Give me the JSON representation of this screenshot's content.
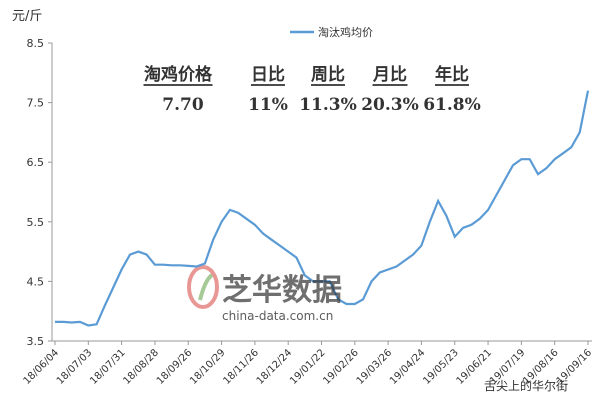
{
  "chart_data": {
    "type": "line",
    "y_unit_label": "元/斤",
    "categories": [
      "18/06/04",
      null,
      null,
      null,
      "18/07/03",
      null,
      null,
      null,
      "18/07/31",
      null,
      null,
      null,
      "18/08/28",
      null,
      null,
      null,
      "18/09/26",
      null,
      null,
      null,
      "18/10/29",
      null,
      null,
      null,
      "18/11/26",
      null,
      null,
      null,
      "18/12/24",
      null,
      null,
      null,
      "19/01/22",
      null,
      null,
      null,
      "19/02/26",
      null,
      null,
      null,
      "19/03/26",
      null,
      null,
      null,
      "19/04/24",
      null,
      null,
      null,
      "19/05/23",
      null,
      null,
      null,
      "19/06/21",
      null,
      null,
      null,
      "19/07/19",
      null,
      null,
      null,
      "19/08/16",
      null,
      null,
      null,
      "19/09/16"
    ],
    "series": [
      {
        "name": "淘汰鸡均价",
        "color": "#5b9bd5",
        "values": [
          3.82,
          3.82,
          3.81,
          3.82,
          3.76,
          3.78,
          4.1,
          4.4,
          4.7,
          4.95,
          5.0,
          4.95,
          4.78,
          4.78,
          4.77,
          4.77,
          4.76,
          4.75,
          4.8,
          5.2,
          5.5,
          5.7,
          5.65,
          5.55,
          5.45,
          5.3,
          5.2,
          5.1,
          5.0,
          4.9,
          4.6,
          4.5,
          4.5,
          4.5,
          4.2,
          4.12,
          4.12,
          4.2,
          4.5,
          4.65,
          4.7,
          4.75,
          4.85,
          4.95,
          5.1,
          5.5,
          5.85,
          5.6,
          5.25,
          5.4,
          5.45,
          5.55,
          5.7,
          5.95,
          6.2,
          6.45,
          6.55,
          6.55,
          6.3,
          6.4,
          6.55,
          6.65,
          6.75,
          7.0,
          7.7
        ]
      }
    ],
    "ylim": [
      3.5,
      8.5
    ],
    "yticks": [
      3.5,
      4.5,
      5.5,
      6.5,
      7.5,
      8.5
    ],
    "grid": false,
    "legend": "top",
    "summary": {
      "headers": [
        "淘鸡价格",
        "日比",
        "周比",
        "月比",
        "年比"
      ],
      "values": [
        "7.70",
        "11%",
        "11.3%",
        "20.3%",
        "61.8%"
      ],
      "colors": [
        "#2e75b6",
        "#8b1a1a",
        "#8b1a1a",
        "#8b1a1a",
        "#8b1a1a"
      ]
    },
    "watermark": {
      "brand": "芝华数据",
      "site": "china-data.com.cn",
      "source": "舌尖上的华尔街"
    }
  }
}
